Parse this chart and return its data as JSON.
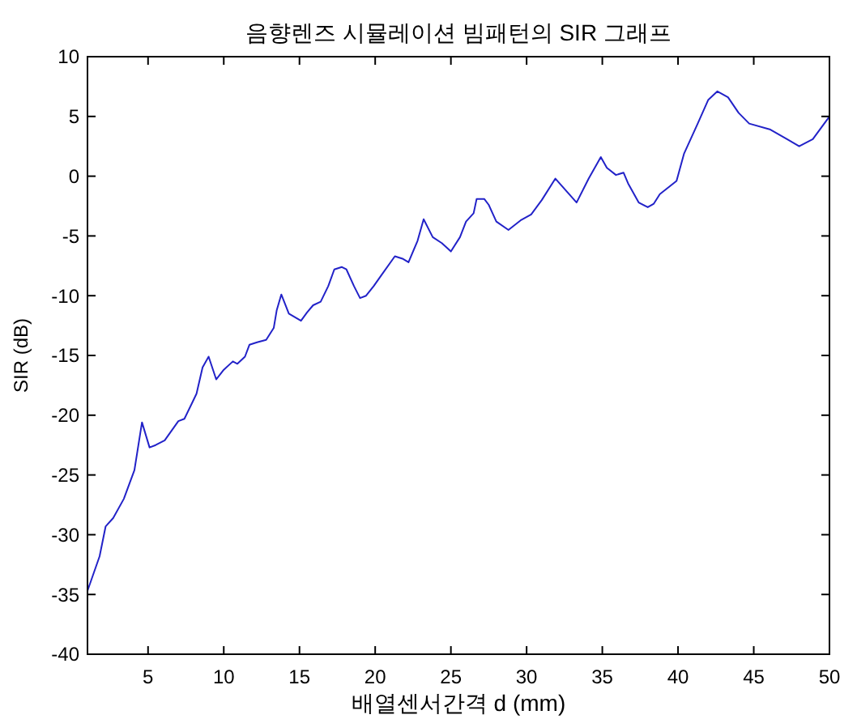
{
  "chart_data": {
    "type": "line",
    "title": "음향렌즈 시뮬레이션 빔패턴의 SIR 그래프",
    "xlabel": "배열센서간격 d (mm)",
    "ylabel": "SIR (dB)",
    "x": [
      1.0,
      1.8,
      2.2,
      2.7,
      3.4,
      4.1,
      4.3,
      4.6,
      5.1,
      5.5,
      6.1,
      7.0,
      7.4,
      7.9,
      8.2,
      8.6,
      9.0,
      9.5,
      10.0,
      10.6,
      10.9,
      11.4,
      11.7,
      12.2,
      12.8,
      13.3,
      13.5,
      13.8,
      14.3,
      15.1,
      15.5,
      15.9,
      16.4,
      16.9,
      17.3,
      17.8,
      18.1,
      18.6,
      19.0,
      19.4,
      19.9,
      20.4,
      21.3,
      21.8,
      22.2,
      22.8,
      23.2,
      23.8,
      24.4,
      25.0,
      25.6,
      26.0,
      26.5,
      26.7,
      27.2,
      27.5,
      28.0,
      28.8,
      29.6,
      30.3,
      31.0,
      31.9,
      32.6,
      33.3,
      34.1,
      34.9,
      35.3,
      35.9,
      36.4,
      36.7,
      37.4,
      38.0,
      38.4,
      38.8,
      39.9,
      40.4,
      41.3,
      42.0,
      42.6,
      43.3,
      44.0,
      44.7,
      46.1,
      47.2,
      48.0,
      48.9,
      50.0
    ],
    "values": [
      -34.7,
      -31.8,
      -29.3,
      -28.6,
      -27.0,
      -24.6,
      -23.0,
      -20.6,
      -22.7,
      -22.5,
      -22.1,
      -20.5,
      -20.3,
      -19.0,
      -18.2,
      -16.0,
      -15.1,
      -17.0,
      -16.2,
      -15.5,
      -15.7,
      -15.1,
      -14.1,
      -13.9,
      -13.7,
      -12.7,
      -11.2,
      -9.9,
      -11.5,
      -12.1,
      -11.4,
      -10.8,
      -10.5,
      -9.2,
      -7.8,
      -7.6,
      -7.8,
      -9.2,
      -10.2,
      -10.0,
      -9.2,
      -8.3,
      -6.7,
      -6.9,
      -7.2,
      -5.4,
      -3.6,
      -5.1,
      -5.6,
      -6.3,
      -5.1,
      -3.8,
      -3.1,
      -1.9,
      -1.9,
      -2.4,
      -3.8,
      -4.5,
      -3.7,
      -3.2,
      -2.0,
      -0.2,
      -1.2,
      -2.2,
      -0.2,
      1.6,
      0.7,
      0.1,
      0.3,
      -0.6,
      -2.2,
      -2.6,
      -2.3,
      -1.5,
      -0.4,
      1.9,
      4.4,
      6.4,
      7.1,
      6.6,
      5.3,
      4.4,
      3.9,
      3.1,
      2.5,
      3.1,
      5.0
    ],
    "color": "#2222c8",
    "line_style": "solid",
    "xlim": [
      1,
      50
    ],
    "ylim": [
      -40,
      10
    ],
    "xticks": [
      5,
      10,
      15,
      20,
      25,
      30,
      35,
      40,
      45,
      50
    ],
    "yticks": [
      -40,
      -35,
      -30,
      -25,
      -20,
      -15,
      -10,
      -5,
      0,
      5,
      10
    ]
  }
}
